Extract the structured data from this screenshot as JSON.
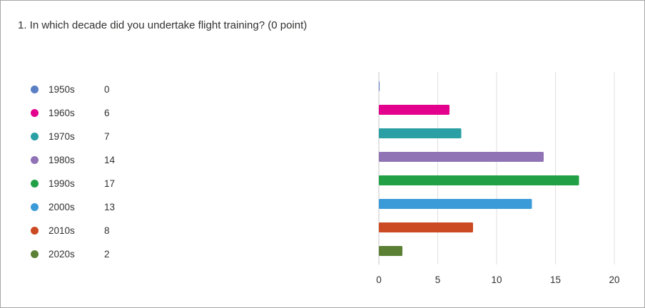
{
  "question": {
    "title": "1. In which decade did you undertake flight training? (0 point)"
  },
  "chart_data": {
    "type": "bar",
    "orientation": "horizontal",
    "categories": [
      "1950s",
      "1960s",
      "1970s",
      "1980s",
      "1990s",
      "2000s",
      "2010s",
      "2020s"
    ],
    "values": [
      0,
      6,
      7,
      14,
      17,
      13,
      8,
      2
    ],
    "colors": [
      "#5b7fc4",
      "#e3008c",
      "#2aa0a4",
      "#8f73b5",
      "#21a046",
      "#3b9ad8",
      "#cc4a23",
      "#5b8035"
    ],
    "xlim": [
      0,
      20
    ],
    "xticks": [
      0,
      5,
      10,
      15,
      20
    ],
    "grid": true,
    "legend": "left"
  }
}
